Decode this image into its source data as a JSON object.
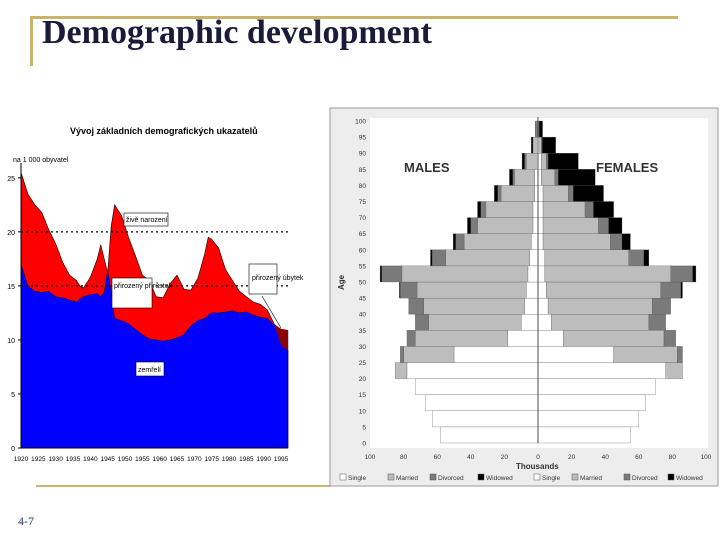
{
  "slide": {
    "title": "Demographic development",
    "page_number": "4-7",
    "accent_color": "#c8b56a"
  },
  "chart_data": [
    {
      "type": "area",
      "title": "Vývoj základních demografických ukazatelů",
      "ylabel": "na 1 000 obyvatel",
      "ylim": [
        0,
        26
      ],
      "yticks": [
        0,
        5,
        10,
        15,
        20,
        25
      ],
      "xticks": [
        "1920",
        "1925",
        "1930",
        "1935",
        "1940",
        "1945",
        "1950",
        "1955",
        "1960",
        "1965",
        "1970",
        "1975",
        "1980",
        "1985",
        "1990",
        "1995"
      ],
      "x": [
        1920,
        1921,
        1922,
        1924,
        1926,
        1928,
        1930,
        1932,
        1934,
        1936,
        1937,
        1938,
        1940,
        1942,
        1943,
        1944,
        1945,
        1946,
        1947,
        1949,
        1951,
        1953,
        1955,
        1957,
        1959,
        1961,
        1963,
        1965,
        1967,
        1969,
        1971,
        1973,
        1974,
        1975,
        1977,
        1979,
        1981,
        1983,
        1985,
        1987,
        1989,
        1991,
        1993,
        1995,
        1997
      ],
      "series": [
        {
          "name": "živě narození",
          "color": "#ff0000",
          "values": [
            25.5,
            24.5,
            23.5,
            22.5,
            21.8,
            20.2,
            18.9,
            17.2,
            16.0,
            15.5,
            15.0,
            14.8,
            15.8,
            17.5,
            18.8,
            17.5,
            16.2,
            20.5,
            22.5,
            21.5,
            19.5,
            17.8,
            16.0,
            15.5,
            14.0,
            13.9,
            15.2,
            16.0,
            14.7,
            14.6,
            15.7,
            18.0,
            19.5,
            19.3,
            18.5,
            16.5,
            15.5,
            14.5,
            14.0,
            13.5,
            13.3,
            12.8,
            11.5,
            9.5,
            9.0
          ]
        },
        {
          "name": "zemřelí",
          "color": "#0000ff",
          "values": [
            17.0,
            16.0,
            15.0,
            14.5,
            14.4,
            14.5,
            14.0,
            13.9,
            13.7,
            13.5,
            13.8,
            14.0,
            14.2,
            14.3,
            14.0,
            14.4,
            16.5,
            14.5,
            12.0,
            11.8,
            11.5,
            11.0,
            10.5,
            10.1,
            10.0,
            9.9,
            10.0,
            10.2,
            10.5,
            11.3,
            11.8,
            12.0,
            12.3,
            12.5,
            12.5,
            12.6,
            12.7,
            12.5,
            12.6,
            12.3,
            12.1,
            12.0,
            11.4,
            11.0,
            10.9
          ]
        },
        {
          "name": "přirozený úbytek",
          "color": "#8b0000",
          "values": [
            0,
            0,
            0,
            0,
            0,
            0,
            0,
            0,
            0,
            0,
            0,
            0,
            0,
            0,
            0,
            0,
            0,
            0,
            0,
            0,
            0,
            0,
            0,
            0,
            0,
            0,
            0,
            0,
            0,
            0,
            0,
            0,
            0,
            0,
            0,
            0,
            0,
            0,
            0,
            0,
            0,
            0,
            0,
            11.0,
            10.9
          ]
        }
      ],
      "annotations": [
        "živě narození",
        "přirozený přírůstek",
        "zemřelí",
        "přirozený úbytek"
      ]
    },
    {
      "type": "bar",
      "orientation": "horizontal",
      "title": "",
      "xlabel": "Thousands",
      "ylabel": "Age",
      "xlim": [
        -100,
        100
      ],
      "xticks": [
        "100",
        "80",
        "60",
        "40",
        "20",
        "0",
        "20",
        "40",
        "60",
        "80",
        "100"
      ],
      "yticks": [
        "0",
        "5",
        "10",
        "15",
        "20",
        "25",
        "30",
        "35",
        "40",
        "45",
        "50",
        "55",
        "60",
        "65",
        "70",
        "75",
        "80",
        "85",
        "90",
        "95",
        "100"
      ],
      "group_labels": {
        "left": "MALES",
        "right": "FEMALES"
      },
      "legend": [
        "Single",
        "Married",
        "Divorced",
        "Widowed",
        "Single",
        "Married",
        "Divorced",
        "Widowed"
      ],
      "legend_position": "bottom",
      "categories": [
        0,
        5,
        10,
        15,
        20,
        25,
        30,
        35,
        40,
        45,
        50,
        55,
        60,
        65,
        70,
        75,
        80,
        85,
        90,
        95
      ],
      "series": [
        {
          "name": "Single",
          "side": "males",
          "color": "#ffffff",
          "values": [
            -58,
            -63,
            -67,
            -73,
            -78,
            -50,
            -18,
            -10,
            -8,
            -7,
            -6,
            -5,
            -4,
            -3,
            -3,
            -2,
            -2,
            -1,
            -1,
            -0.5
          ]
        },
        {
          "name": "Married",
          "side": "males",
          "color": "#bdbdbd",
          "values": [
            0,
            0,
            0,
            0,
            -7,
            -30,
            -55,
            -55,
            -60,
            -65,
            -75,
            -50,
            -40,
            -33,
            -28,
            -20,
            -12,
            -6,
            -2,
            -0.5
          ]
        },
        {
          "name": "Divorced",
          "side": "males",
          "color": "#7a7a7a",
          "values": [
            0,
            0,
            0,
            0,
            0,
            -2,
            -5,
            -8,
            -9,
            -10,
            -12,
            -8,
            -5,
            -4,
            -3,
            -2,
            -1,
            -1,
            0,
            0
          ]
        },
        {
          "name": "Widowed",
          "side": "males",
          "color": "#000000",
          "values": [
            0,
            0,
            0,
            0,
            0,
            0,
            0,
            0,
            0,
            -0.5,
            -1,
            -1,
            -1.5,
            -2,
            -2,
            -2,
            -2,
            -1.5,
            -1,
            -0.5
          ]
        },
        {
          "name": "Single",
          "side": "females",
          "color": "#ffffff",
          "values": [
            55,
            60,
            64,
            70,
            76,
            45,
            15,
            8,
            6,
            5,
            4,
            4,
            3,
            3,
            3,
            3,
            2,
            2,
            1,
            0.5
          ]
        },
        {
          "name": "Married",
          "side": "females",
          "color": "#bdbdbd",
          "values": [
            0,
            0,
            0,
            0,
            10,
            38,
            60,
            58,
            62,
            68,
            75,
            50,
            40,
            33,
            25,
            15,
            8,
            3,
            1,
            0.2
          ]
        },
        {
          "name": "Divorced",
          "side": "females",
          "color": "#7a7a7a",
          "values": [
            0,
            0,
            0,
            0,
            0,
            3,
            7,
            10,
            11,
            12,
            13,
            9,
            7,
            6,
            5,
            3,
            2,
            1,
            0.5,
            0
          ]
        },
        {
          "name": "Widowed",
          "side": "females",
          "color": "#000000",
          "values": [
            0,
            0,
            0,
            0,
            0,
            0,
            0,
            0,
            0,
            1,
            2,
            3,
            5,
            8,
            12,
            18,
            22,
            18,
            8,
            2
          ]
        }
      ]
    }
  ]
}
